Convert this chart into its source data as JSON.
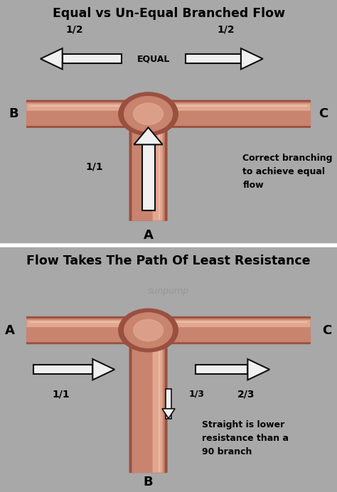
{
  "title1": "Equal vs Un-Equal Branched Flow",
  "title2": "Flow Takes The Path Of Least Resistance",
  "bg_color": "#a8a8a8",
  "pipe_base": "#c8846e",
  "pipe_light": "#e8b09a",
  "pipe_dark": "#9a5040",
  "pipe_shadow": "#7a3828",
  "watermark": "sunpump",
  "divider_color": "#e8e8e8",
  "panel1_note": "Correct branching\nto achieve equal\nflow",
  "panel2_note": "Straight is lower\nresistance than a\n90 branch",
  "arrow_fill": "#f0f0f0",
  "arrow_edge": "#101010"
}
